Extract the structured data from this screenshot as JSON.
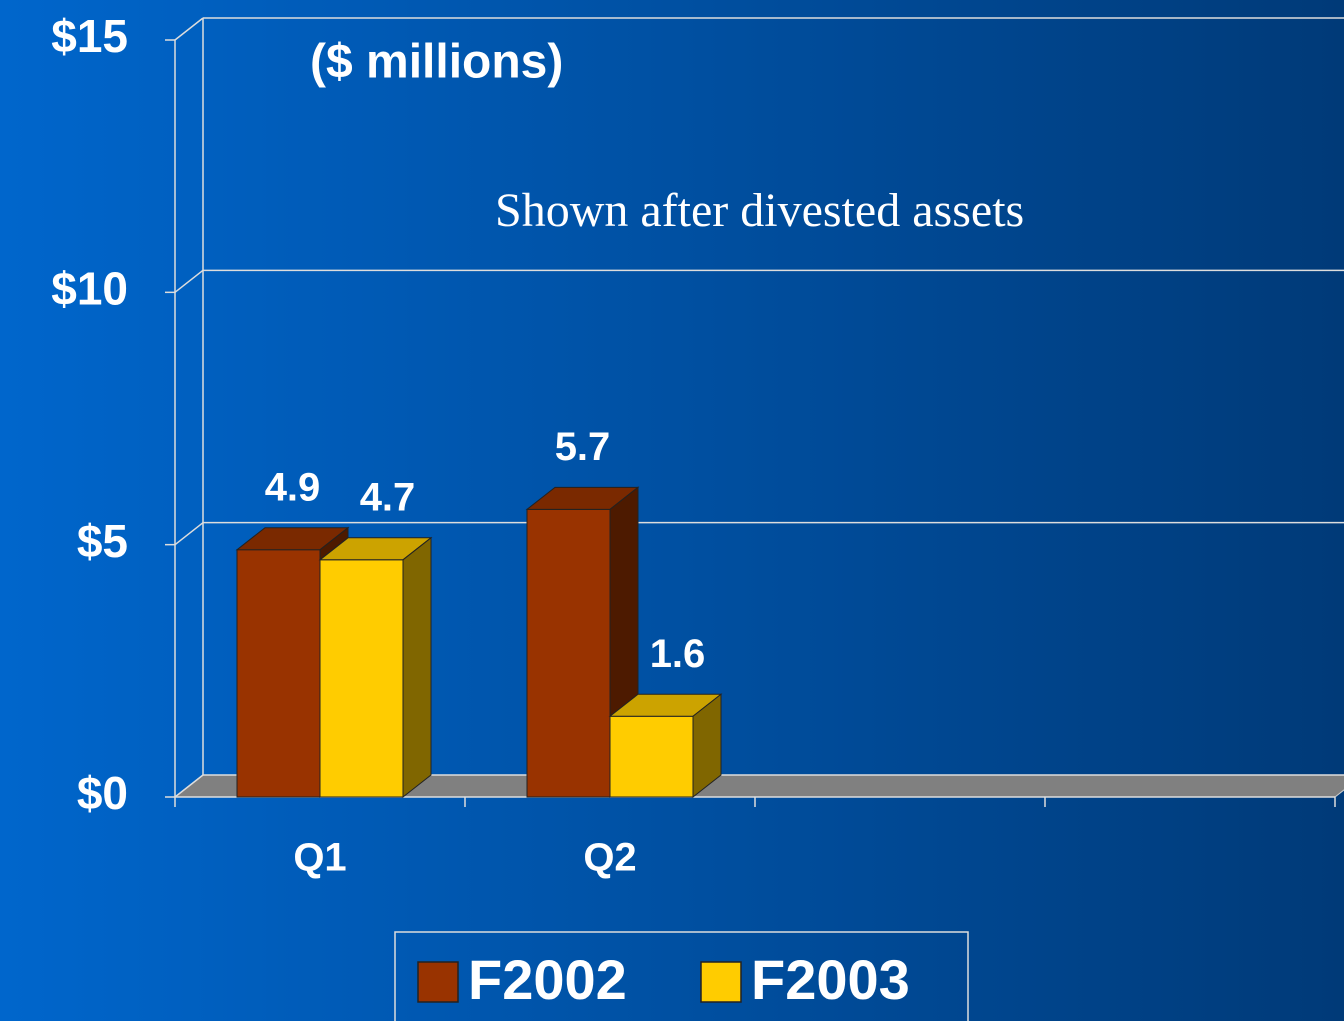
{
  "chart_data": {
    "type": "bar3d",
    "title": "($ millions)",
    "annotation": "Shown after divested assets",
    "categories": [
      "Q1",
      "Q2",
      null,
      null
    ],
    "series": [
      {
        "name": "F2002",
        "color": "#993300",
        "values": [
          4.9,
          5.7,
          null,
          null
        ]
      },
      {
        "name": "F2003",
        "color": "#ffcc00",
        "values": [
          4.7,
          1.6,
          null,
          null
        ]
      }
    ],
    "ylim": [
      0,
      15
    ],
    "yticks": [
      {
        "value": 0,
        "label": "$0"
      },
      {
        "value": 5,
        "label": "$5"
      },
      {
        "value": 10,
        "label": "$10"
      },
      {
        "value": 15,
        "label": "$15"
      }
    ],
    "grid": true,
    "legend": "bottom"
  }
}
